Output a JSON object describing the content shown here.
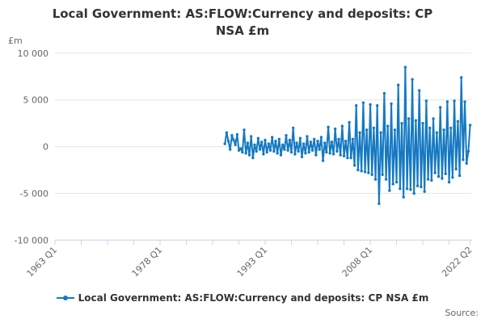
{
  "title": "Local Government: AS:FLOW:Currency and deposits: CP NSA £m",
  "y_unit_label": "£m",
  "legend": {
    "label": "Local Government: AS:FLOW:Currency and deposits: CP NSA £m"
  },
  "source_label": "Source:",
  "colors": {
    "series": "#1579c2",
    "grid": "#e6e6e6",
    "axis": "#ccd6eb",
    "text_muted": "#666666",
    "title_text": "#333333"
  },
  "chart_data": {
    "type": "line",
    "title": "Local Government: AS:FLOW:Currency and deposits: CP NSA £m",
    "xlabel": "",
    "ylabel": "£m",
    "legend_position": "bottom",
    "grid": true,
    "x_axis": {
      "start": "1963 Q1",
      "end": "2022 Q2",
      "labeled_ticks": [
        "1963 Q1",
        "1978 Q1",
        "1993 Q1",
        "2008 Q1",
        "2022 Q2"
      ],
      "tick_interval_quarters": 15
    },
    "y_axis": {
      "range": [
        -10000,
        10000
      ],
      "ticks": [
        10000,
        5000,
        0,
        -5000,
        -10000
      ],
      "tick_labels": [
        "10 000",
        "5 000",
        "0",
        "-5 000",
        "-10 000"
      ]
    },
    "series": [
      {
        "name": "Local Government: AS:FLOW:Currency and deposits: CP NSA £m",
        "frequency": "quarterly",
        "start": "1987 Q2",
        "end": "2022 Q2",
        "values": [
          300,
          1500,
          600,
          -300,
          1200,
          700,
          200,
          1300,
          -400,
          -200,
          -600,
          1800,
          -700,
          400,
          -900,
          1100,
          -1200,
          200,
          -500,
          900,
          -300,
          500,
          -800,
          700,
          -600,
          300,
          -400,
          1000,
          -500,
          600,
          -700,
          800,
          -900,
          200,
          -300,
          1200,
          -400,
          700,
          -600,
          2000,
          -800,
          400,
          -500,
          900,
          -1100,
          300,
          -700,
          1100,
          -600,
          500,
          -400,
          800,
          -900,
          600,
          -300,
          1000,
          -1500,
          400,
          -600,
          2100,
          -700,
          500,
          -800,
          1900,
          -500,
          800,
          -900,
          2200,
          -1000,
          600,
          -1200,
          2600,
          -1200,
          800,
          -2000,
          4400,
          -2500,
          1500,
          -2600,
          4700,
          -2700,
          1800,
          -2800,
          4500,
          -3000,
          2000,
          -3500,
          4400,
          -6100,
          1500,
          -3000,
          5700,
          -3500,
          2200,
          -4700,
          4600,
          -4000,
          1800,
          -3800,
          6600,
          -4500,
          2500,
          -5400,
          8500,
          -4500,
          3000,
          -4600,
          7200,
          -5000,
          2800,
          -4200,
          6000,
          -4300,
          2500,
          -4800,
          4900,
          -3500,
          2000,
          -3600,
          3000,
          -2800,
          1500,
          -3200,
          4200,
          -3400,
          1800,
          -2900,
          4800,
          -3800,
          2000,
          -3300,
          4900,
          -2400,
          2700,
          -3100,
          7400,
          -1400,
          4800,
          -1800,
          -500,
          2300
        ]
      }
    ]
  }
}
